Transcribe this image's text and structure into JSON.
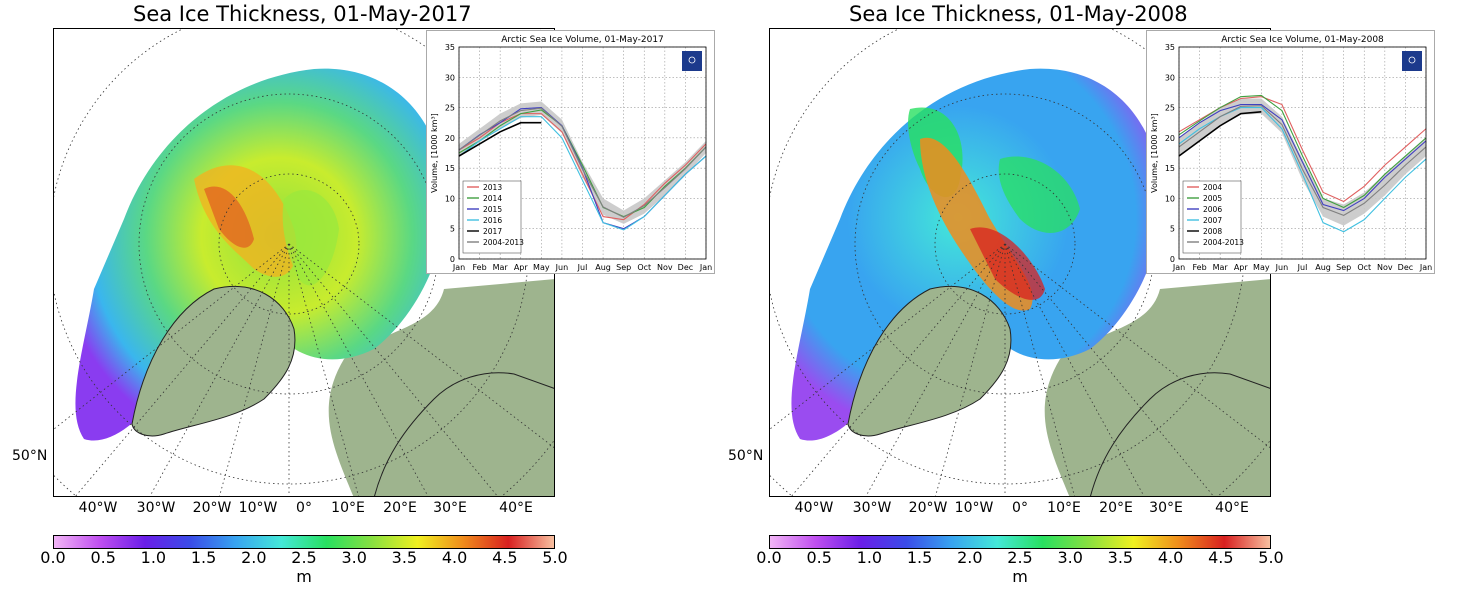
{
  "colorbar": {
    "ticks": [
      "0.0",
      "0.5",
      "1.0",
      "1.5",
      "2.0",
      "2.5",
      "3.0",
      "3.5",
      "4.0",
      "4.5",
      "5.0"
    ],
    "unit": "m",
    "range": [
      0,
      5
    ],
    "colors": [
      "#f2b5f6",
      "#c04ff0",
      "#6a1ee8",
      "#3a4ce8",
      "#38a4f0",
      "#44e8d8",
      "#28e060",
      "#88e040",
      "#f0f020",
      "#f08c1c",
      "#d82020",
      "#f8c0a0"
    ]
  },
  "map_labels": {
    "lat": "50°N",
    "lon": [
      "40°W",
      "30°W",
      "20°W",
      "10°W",
      "0°",
      "10°E",
      "20°E",
      "30°E",
      "40°E"
    ]
  },
  "panels": [
    {
      "title": "Sea Ice Thickness, 01-May-2017",
      "inset": {
        "chart_data": {
          "type": "line",
          "title": "Arctic Sea Ice Volume, 01-May-2017",
          "ylabel": "Volume, [1000 km³]",
          "ylim": [
            0,
            35
          ],
          "yticks": [
            "0",
            "5",
            "10",
            "15",
            "20",
            "25",
            "30",
            "35"
          ],
          "categories": [
            "Jan",
            "Feb",
            "Mar",
            "Apr",
            "May",
            "Jun",
            "Jul",
            "Aug",
            "Sep",
            "Oct",
            "Nov",
            "Dec",
            "Jan"
          ],
          "grid": true,
          "legend_position": "bottom-left",
          "band": {
            "name": "2004-2013",
            "upper": [
              19,
              21.5,
              24,
              25.7,
              26,
              23,
              16,
              10,
              8,
              10,
              13,
              16,
              19.5
            ],
            "lower": [
              17,
              19.3,
              21.5,
              23.3,
              23.8,
              20.8,
              13.5,
              7.3,
              5.8,
              7.5,
              10.5,
              13.8,
              17.5
            ],
            "color": "#c8c8c8"
          },
          "series": [
            {
              "name": "2013",
              "color": "#e06060",
              "values": [
                18,
                20,
                22.5,
                24,
                24,
                21,
                14,
                7,
                6.5,
                9,
                12.5,
                15.5,
                19
              ]
            },
            {
              "name": "2014",
              "color": "#40a040",
              "values": [
                17.5,
                19.5,
                22,
                24,
                24.6,
                22,
                15.5,
                8.5,
                7,
                8.5,
                12,
                15,
                18.5
              ]
            },
            {
              "name": "2015",
              "color": "#4040c0",
              "values": [
                18,
                20.5,
                22.5,
                24.8,
                25,
                22,
                15,
                6,
                5,
                7,
                10.5,
                14,
                17
              ]
            },
            {
              "name": "2016",
              "color": "#40c0e0",
              "values": [
                17,
                19.5,
                21.5,
                23.5,
                23.5,
                20,
                13,
                6,
                4.8,
                7,
                10.5,
                14,
                17
              ]
            },
            {
              "name": "2017",
              "color": "#000000",
              "values": [
                17,
                19,
                21,
                22.5,
                22.5,
                null,
                null,
                null,
                null,
                null,
                null,
                null,
                null
              ]
            },
            {
              "name": "2004-2013",
              "color": "#808080",
              "values": [
                18,
                20.4,
                22.8,
                24.5,
                24.9,
                21.9,
                14.8,
                8.6,
                6.9,
                8.8,
                11.8,
                14.9,
                18.5
              ]
            }
          ]
        }
      }
    },
    {
      "title": "Sea Ice Thickness, 01-May-2008",
      "inset": {
        "chart_data": {
          "type": "line",
          "title": "Arctic Sea Ice Volume, 01-May-2008",
          "ylabel": "Volume, [1000 km³]",
          "ylim": [
            0,
            35
          ],
          "yticks": [
            "0",
            "5",
            "10",
            "15",
            "20",
            "25",
            "30",
            "35"
          ],
          "categories": [
            "Jan",
            "Feb",
            "Mar",
            "Apr",
            "May",
            "Jun",
            "Jul",
            "Aug",
            "Sep",
            "Oct",
            "Nov",
            "Dec",
            "Jan"
          ],
          "grid": true,
          "legend_position": "bottom-left",
          "band": {
            "name": "2004-2013",
            "upper": [
              20,
              22.5,
              25,
              26.5,
              26.5,
              23.5,
              16.5,
              10,
              9,
              11,
              14,
              17,
              20
            ],
            "lower": [
              17,
              19.5,
              22,
              23.8,
              24,
              20.8,
              13,
              7,
              5.5,
              7.5,
              10.5,
              14,
              17
            ],
            "color": "#c8c8c8"
          },
          "series": [
            {
              "name": "2004",
              "color": "#e06060",
              "values": [
                21,
                23,
                25,
                26.5,
                26.8,
                25.5,
                18,
                11,
                9.5,
                12,
                15.5,
                18.5,
                21.5
              ]
            },
            {
              "name": "2005",
              "color": "#40a040",
              "values": [
                20.5,
                22.8,
                25,
                26.8,
                27,
                24.5,
                17,
                10,
                8.5,
                10.5,
                14,
                17,
                20
              ]
            },
            {
              "name": "2006",
              "color": "#4040c0",
              "values": [
                20,
                22.5,
                24.5,
                25.5,
                25.5,
                23,
                16,
                9,
                8,
                10,
                13.5,
                16.5,
                19.5
              ]
            },
            {
              "name": "2007",
              "color": "#40c0e0",
              "values": [
                19,
                21.5,
                23.5,
                25,
                25,
                21.5,
                14,
                6,
                4.5,
                6.5,
                10,
                13.5,
                16.5
              ]
            },
            {
              "name": "2008",
              "color": "#000000",
              "values": [
                17,
                19.5,
                22,
                24,
                24.3,
                null,
                null,
                null,
                null,
                null,
                null,
                null,
                null
              ]
            },
            {
              "name": "2004-2013",
              "color": "#808080",
              "values": [
                18.5,
                21,
                23.5,
                25.2,
                25.3,
                22.2,
                14.8,
                8.5,
                7.2,
                9.2,
                12.2,
                15.5,
                18.5
              ]
            }
          ]
        }
      }
    }
  ]
}
